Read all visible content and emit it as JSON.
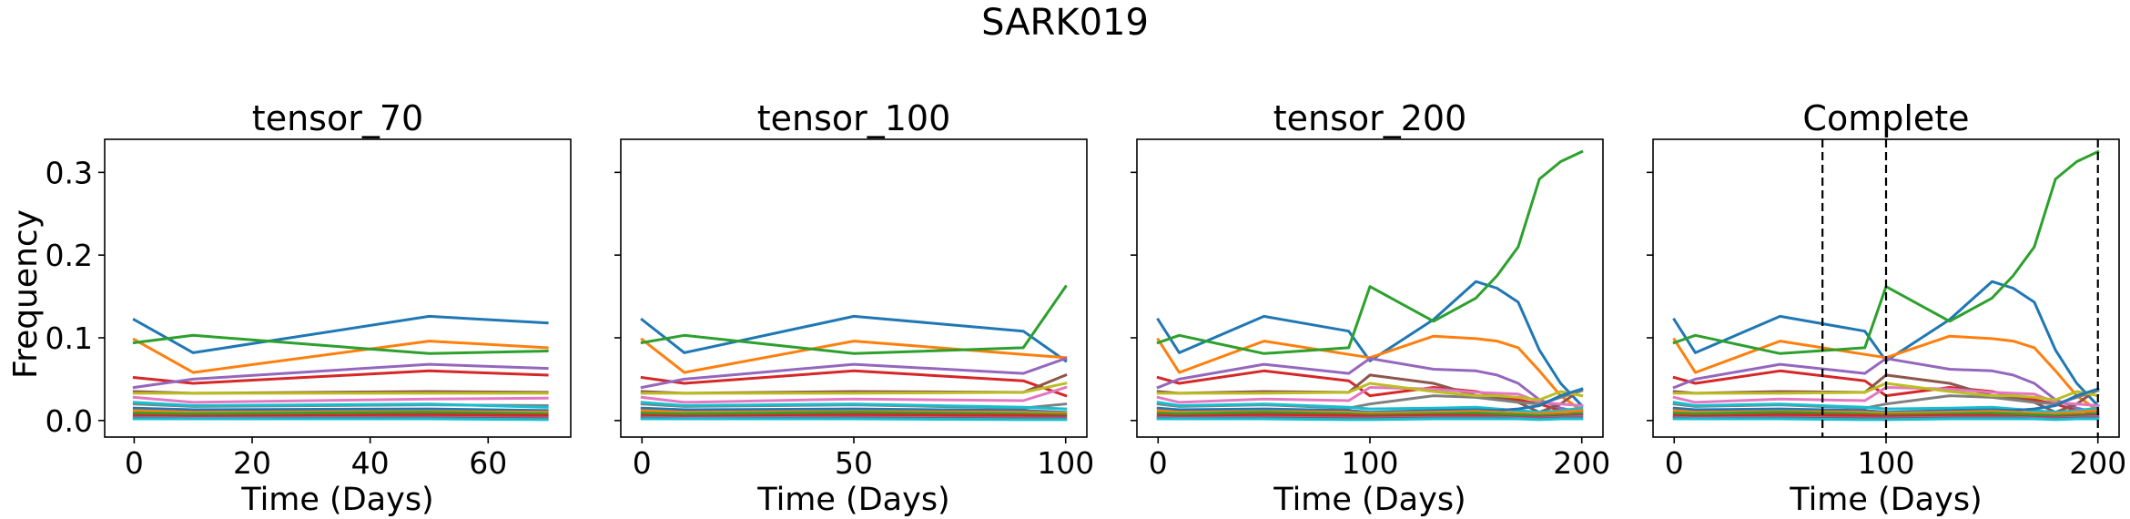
{
  "figure": {
    "suptitle": "SARK019",
    "ylabel": "Frequency"
  },
  "chart_data": [
    {
      "type": "line",
      "title": "tensor_70",
      "xlabel": "Time (Days)",
      "ylabel": "Frequency",
      "xlim": [
        -5,
        74
      ],
      "ylim": [
        -0.02,
        0.34
      ],
      "xticks": [
        0,
        20,
        40,
        60
      ],
      "yticks": [
        0.0,
        0.1,
        0.2,
        0.3
      ],
      "x": [
        0,
        10,
        50,
        70
      ],
      "vlines": [],
      "series": [
        {
          "color": "#1f77b4",
          "values": [
            0.122,
            0.082,
            0.126,
            0.118
          ]
        },
        {
          "color": "#ff7f0e",
          "values": [
            0.098,
            0.058,
            0.096,
            0.088
          ]
        },
        {
          "color": "#2ca02c",
          "values": [
            0.094,
            0.103,
            0.081,
            0.084
          ]
        },
        {
          "color": "#d62728",
          "values": [
            0.052,
            0.045,
            0.06,
            0.055
          ]
        },
        {
          "color": "#9467bd",
          "values": [
            0.04,
            0.05,
            0.068,
            0.063
          ]
        },
        {
          "color": "#8c564b",
          "values": [
            0.035,
            0.033,
            0.035,
            0.034
          ]
        },
        {
          "color": "#e377c2",
          "values": [
            0.028,
            0.022,
            0.026,
            0.027
          ]
        },
        {
          "color": "#7f7f7f",
          "values": [
            0.02,
            0.017,
            0.019,
            0.018
          ]
        },
        {
          "color": "#bcbd22",
          "values": [
            0.033,
            0.033,
            0.033,
            0.033
          ]
        },
        {
          "color": "#17becf",
          "values": [
            0.022,
            0.018,
            0.02,
            0.016
          ]
        },
        {
          "color": "#1f77b4",
          "values": [
            0.015,
            0.013,
            0.014,
            0.012
          ]
        },
        {
          "color": "#ff7f0e",
          "values": [
            0.012,
            0.01,
            0.011,
            0.01
          ]
        },
        {
          "color": "#2ca02c",
          "values": [
            0.009,
            0.008,
            0.01,
            0.008
          ]
        },
        {
          "color": "#d62728",
          "values": [
            0.006,
            0.005,
            0.007,
            0.006
          ]
        },
        {
          "color": "#9467bd",
          "values": [
            0.004,
            0.003,
            0.004,
            0.003
          ]
        },
        {
          "color": "#8c564b",
          "values": [
            0.003,
            0.002,
            0.003,
            0.002
          ]
        },
        {
          "color": "#17becf",
          "values": [
            0.002,
            0.002,
            0.002,
            0.001
          ]
        }
      ]
    },
    {
      "type": "line",
      "title": "tensor_100",
      "xlabel": "Time (Days)",
      "ylabel": "",
      "xlim": [
        -5,
        105
      ],
      "ylim": [
        -0.02,
        0.34
      ],
      "xticks": [
        0,
        50,
        100
      ],
      "yticks": [
        0.0,
        0.1,
        0.2,
        0.3
      ],
      "x": [
        0,
        10,
        50,
        90,
        100
      ],
      "vlines": [],
      "series": [
        {
          "color": "#1f77b4",
          "values": [
            0.122,
            0.082,
            0.126,
            0.108,
            0.072
          ]
        },
        {
          "color": "#ff7f0e",
          "values": [
            0.098,
            0.058,
            0.096,
            0.08,
            0.076
          ]
        },
        {
          "color": "#2ca02c",
          "values": [
            0.094,
            0.103,
            0.081,
            0.088,
            0.162
          ]
        },
        {
          "color": "#d62728",
          "values": [
            0.052,
            0.045,
            0.06,
            0.048,
            0.03
          ]
        },
        {
          "color": "#9467bd",
          "values": [
            0.04,
            0.05,
            0.068,
            0.057,
            0.075
          ]
        },
        {
          "color": "#8c564b",
          "values": [
            0.035,
            0.033,
            0.035,
            0.034,
            0.055
          ]
        },
        {
          "color": "#e377c2",
          "values": [
            0.028,
            0.022,
            0.026,
            0.024,
            0.04
          ]
        },
        {
          "color": "#7f7f7f",
          "values": [
            0.02,
            0.017,
            0.019,
            0.015,
            0.02
          ]
        },
        {
          "color": "#bcbd22",
          "values": [
            0.033,
            0.033,
            0.033,
            0.034,
            0.045
          ]
        },
        {
          "color": "#17becf",
          "values": [
            0.022,
            0.018,
            0.02,
            0.016,
            0.014
          ]
        },
        {
          "color": "#1f77b4",
          "values": [
            0.015,
            0.013,
            0.014,
            0.012,
            0.01
          ]
        },
        {
          "color": "#ff7f0e",
          "values": [
            0.012,
            0.01,
            0.011,
            0.01,
            0.009
          ]
        },
        {
          "color": "#2ca02c",
          "values": [
            0.009,
            0.008,
            0.01,
            0.008,
            0.007
          ]
        },
        {
          "color": "#d62728",
          "values": [
            0.006,
            0.005,
            0.007,
            0.006,
            0.005
          ]
        },
        {
          "color": "#9467bd",
          "values": [
            0.004,
            0.003,
            0.004,
            0.003,
            0.003
          ]
        },
        {
          "color": "#8c564b",
          "values": [
            0.003,
            0.002,
            0.003,
            0.002,
            0.002
          ]
        },
        {
          "color": "#17becf",
          "values": [
            0.002,
            0.002,
            0.002,
            0.001,
            0.001
          ]
        }
      ]
    },
    {
      "type": "line",
      "title": "tensor_200",
      "xlabel": "Time (Days)",
      "ylabel": "",
      "xlim": [
        -10,
        210
      ],
      "ylim": [
        -0.02,
        0.34
      ],
      "xticks": [
        0,
        100,
        200
      ],
      "yticks": [
        0.0,
        0.1,
        0.2,
        0.3
      ],
      "x": [
        0,
        10,
        50,
        90,
        100,
        130,
        150,
        160,
        170,
        180,
        190,
        200
      ],
      "vlines": [],
      "series": [
        {
          "color": "#1f77b4",
          "values": [
            0.122,
            0.082,
            0.126,
            0.108,
            0.072,
            0.122,
            0.168,
            0.16,
            0.143,
            0.085,
            0.045,
            0.018
          ]
        },
        {
          "color": "#ff7f0e",
          "values": [
            0.098,
            0.058,
            0.096,
            0.08,
            0.076,
            0.102,
            0.099,
            0.096,
            0.088,
            0.06,
            0.03,
            0.012
          ]
        },
        {
          "color": "#2ca02c",
          "values": [
            0.094,
            0.103,
            0.081,
            0.088,
            0.162,
            0.12,
            0.148,
            0.175,
            0.21,
            0.292,
            0.313,
            0.325
          ]
        },
        {
          "color": "#d62728",
          "values": [
            0.052,
            0.045,
            0.06,
            0.048,
            0.03,
            0.04,
            0.035,
            0.03,
            0.025,
            0.02,
            0.012,
            0.008
          ]
        },
        {
          "color": "#9467bd",
          "values": [
            0.04,
            0.05,
            0.068,
            0.057,
            0.075,
            0.062,
            0.06,
            0.055,
            0.045,
            0.025,
            0.015,
            0.01
          ]
        },
        {
          "color": "#8c564b",
          "values": [
            0.035,
            0.033,
            0.035,
            0.034,
            0.055,
            0.045,
            0.03,
            0.028,
            0.022,
            0.01,
            0.02,
            0.038
          ]
        },
        {
          "color": "#e377c2",
          "values": [
            0.028,
            0.022,
            0.026,
            0.024,
            0.04,
            0.038,
            0.034,
            0.033,
            0.032,
            0.022,
            0.02,
            0.018
          ]
        },
        {
          "color": "#7f7f7f",
          "values": [
            0.02,
            0.017,
            0.019,
            0.015,
            0.02,
            0.03,
            0.028,
            0.025,
            0.022,
            0.02,
            0.028,
            0.036
          ]
        },
        {
          "color": "#bcbd22",
          "values": [
            0.033,
            0.033,
            0.033,
            0.034,
            0.045,
            0.035,
            0.03,
            0.03,
            0.028,
            0.025,
            0.035,
            0.03
          ]
        },
        {
          "color": "#17becf",
          "values": [
            0.022,
            0.018,
            0.02,
            0.016,
            0.014,
            0.015,
            0.016,
            0.014,
            0.012,
            0.01,
            0.012,
            0.015
          ]
        },
        {
          "color": "#1f77b4",
          "values": [
            0.015,
            0.013,
            0.014,
            0.012,
            0.01,
            0.012,
            0.013,
            0.012,
            0.014,
            0.018,
            0.03,
            0.038
          ]
        },
        {
          "color": "#ff7f0e",
          "values": [
            0.012,
            0.01,
            0.011,
            0.01,
            0.009,
            0.01,
            0.011,
            0.01,
            0.009,
            0.008,
            0.01,
            0.012
          ]
        },
        {
          "color": "#2ca02c",
          "values": [
            0.009,
            0.008,
            0.01,
            0.008,
            0.007,
            0.008,
            0.009,
            0.008,
            0.007,
            0.006,
            0.007,
            0.008
          ]
        },
        {
          "color": "#d62728",
          "values": [
            0.006,
            0.005,
            0.007,
            0.006,
            0.005,
            0.006,
            0.006,
            0.005,
            0.004,
            0.004,
            0.005,
            0.006
          ]
        },
        {
          "color": "#9467bd",
          "values": [
            0.004,
            0.003,
            0.004,
            0.003,
            0.003,
            0.004,
            0.004,
            0.004,
            0.003,
            0.003,
            0.004,
            0.005
          ]
        },
        {
          "color": "#8c564b",
          "values": [
            0.003,
            0.002,
            0.003,
            0.002,
            0.002,
            0.003,
            0.003,
            0.003,
            0.002,
            0.002,
            0.003,
            0.003
          ]
        },
        {
          "color": "#17becf",
          "values": [
            0.002,
            0.002,
            0.002,
            0.001,
            0.001,
            0.002,
            0.002,
            0.002,
            0.002,
            0.001,
            0.002,
            0.002
          ]
        }
      ]
    },
    {
      "type": "line",
      "title": "Complete",
      "xlabel": "Time (Days)",
      "ylabel": "",
      "xlim": [
        -10,
        210
      ],
      "ylim": [
        -0.02,
        0.34
      ],
      "xticks": [
        0,
        100,
        200
      ],
      "yticks": [
        0.0,
        0.1,
        0.2,
        0.3
      ],
      "x": [
        0,
        10,
        50,
        90,
        100,
        130,
        150,
        160,
        170,
        180,
        190,
        200
      ],
      "vlines": [
        70,
        100,
        200
      ],
      "series": [
        {
          "color": "#1f77b4",
          "values": [
            0.122,
            0.082,
            0.126,
            0.108,
            0.072,
            0.122,
            0.168,
            0.16,
            0.143,
            0.085,
            0.045,
            0.018
          ]
        },
        {
          "color": "#ff7f0e",
          "values": [
            0.098,
            0.058,
            0.096,
            0.08,
            0.076,
            0.102,
            0.099,
            0.096,
            0.088,
            0.06,
            0.03,
            0.012
          ]
        },
        {
          "color": "#2ca02c",
          "values": [
            0.094,
            0.103,
            0.081,
            0.088,
            0.162,
            0.12,
            0.148,
            0.175,
            0.21,
            0.292,
            0.313,
            0.325
          ]
        },
        {
          "color": "#d62728",
          "values": [
            0.052,
            0.045,
            0.06,
            0.048,
            0.03,
            0.04,
            0.035,
            0.03,
            0.025,
            0.02,
            0.012,
            0.008
          ]
        },
        {
          "color": "#9467bd",
          "values": [
            0.04,
            0.05,
            0.068,
            0.057,
            0.075,
            0.062,
            0.06,
            0.055,
            0.045,
            0.025,
            0.015,
            0.01
          ]
        },
        {
          "color": "#8c564b",
          "values": [
            0.035,
            0.033,
            0.035,
            0.034,
            0.055,
            0.045,
            0.03,
            0.028,
            0.022,
            0.01,
            0.02,
            0.038
          ]
        },
        {
          "color": "#e377c2",
          "values": [
            0.028,
            0.022,
            0.026,
            0.024,
            0.04,
            0.038,
            0.034,
            0.033,
            0.032,
            0.022,
            0.02,
            0.018
          ]
        },
        {
          "color": "#7f7f7f",
          "values": [
            0.02,
            0.017,
            0.019,
            0.015,
            0.02,
            0.03,
            0.028,
            0.025,
            0.022,
            0.02,
            0.028,
            0.036
          ]
        },
        {
          "color": "#bcbd22",
          "values": [
            0.033,
            0.033,
            0.033,
            0.034,
            0.045,
            0.035,
            0.03,
            0.03,
            0.028,
            0.025,
            0.035,
            0.03
          ]
        },
        {
          "color": "#17becf",
          "values": [
            0.022,
            0.018,
            0.02,
            0.016,
            0.014,
            0.015,
            0.016,
            0.014,
            0.012,
            0.01,
            0.012,
            0.015
          ]
        },
        {
          "color": "#1f77b4",
          "values": [
            0.015,
            0.013,
            0.014,
            0.012,
            0.01,
            0.012,
            0.013,
            0.012,
            0.014,
            0.018,
            0.03,
            0.038
          ]
        },
        {
          "color": "#ff7f0e",
          "values": [
            0.012,
            0.01,
            0.011,
            0.01,
            0.009,
            0.01,
            0.011,
            0.01,
            0.009,
            0.008,
            0.01,
            0.012
          ]
        },
        {
          "color": "#2ca02c",
          "values": [
            0.009,
            0.008,
            0.01,
            0.008,
            0.007,
            0.008,
            0.009,
            0.008,
            0.007,
            0.006,
            0.007,
            0.008
          ]
        },
        {
          "color": "#d62728",
          "values": [
            0.006,
            0.005,
            0.007,
            0.006,
            0.005,
            0.006,
            0.006,
            0.005,
            0.004,
            0.004,
            0.005,
            0.006
          ]
        },
        {
          "color": "#9467bd",
          "values": [
            0.004,
            0.003,
            0.004,
            0.003,
            0.003,
            0.004,
            0.004,
            0.004,
            0.003,
            0.003,
            0.004,
            0.005
          ]
        },
        {
          "color": "#8c564b",
          "values": [
            0.003,
            0.002,
            0.003,
            0.002,
            0.002,
            0.003,
            0.003,
            0.003,
            0.002,
            0.002,
            0.003,
            0.003
          ]
        },
        {
          "color": "#17becf",
          "values": [
            0.002,
            0.002,
            0.002,
            0.001,
            0.001,
            0.002,
            0.002,
            0.002,
            0.002,
            0.001,
            0.002,
            0.002
          ]
        }
      ]
    }
  ]
}
